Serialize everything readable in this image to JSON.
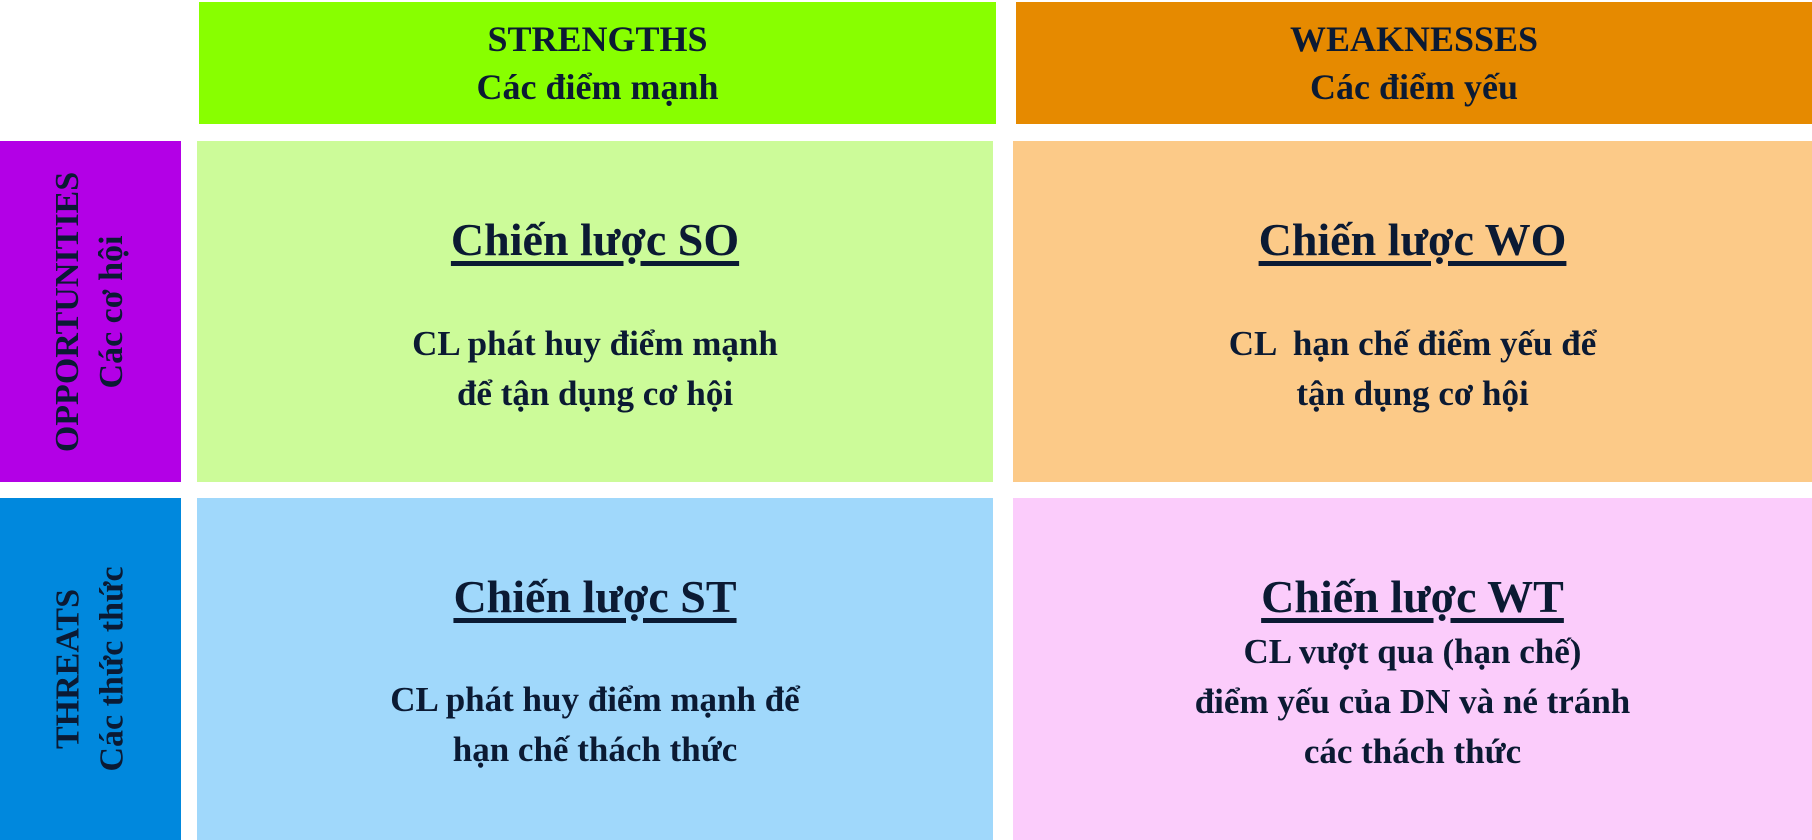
{
  "headers": {
    "strengths": {
      "title": "STRENGTHS",
      "subtitle": "Các điểm mạnh",
      "color": "#88ff00"
    },
    "weaknesses": {
      "title": "WEAKNESSES",
      "subtitle": "Các điểm yếu",
      "color": "#e68a00"
    }
  },
  "sides": {
    "opportunities": {
      "title": "OPPORTUNITIES",
      "subtitle": "Các cơ hội",
      "color": "#b300e6"
    },
    "threats": {
      "title": "THREATS",
      "subtitle": "Các thức thức",
      "color": "#0088dd"
    }
  },
  "cells": {
    "so": {
      "title": "Chiến lược SO",
      "lines": [
        "CL phát huy điểm mạnh",
        "để tận dụng cơ hội"
      ],
      "color": "#ccfb99"
    },
    "wo": {
      "title": "Chiến lược WO",
      "lines": [
        "CL  hạn chế điểm yếu để",
        "tận dụng cơ hội"
      ],
      "color": "#fcca88"
    },
    "st": {
      "title": "Chiến lược ST",
      "lines": [
        "CL phát huy điểm mạnh để",
        "hạn chế thách thức"
      ],
      "color": "#a0d8fb"
    },
    "wt": {
      "title": "Chiến lược WT",
      "lines": [
        "CL vượt qua (hạn chế)",
        "điểm yếu của DN và né tránh",
        "các thách thức"
      ],
      "color": "#fbccfb"
    }
  }
}
